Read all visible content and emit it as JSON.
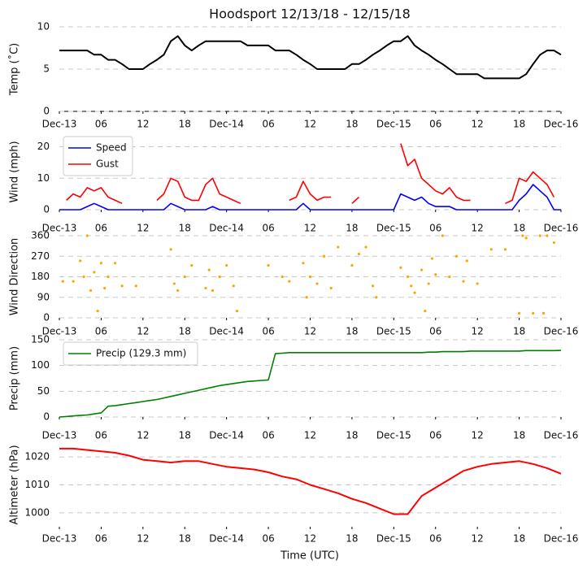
{
  "chart_data": [
    {
      "type": "line",
      "title": "Hoodsport 12/13/18 - 12/15/18",
      "ylabel": "Temp ($^\\circ$C)",
      "xlim": [
        0,
        72
      ],
      "ylim": [
        0,
        10
      ],
      "yticks": [
        0,
        5,
        10
      ],
      "grid": true,
      "xticks": [
        {
          "value": 0,
          "label": "Dec-13"
        },
        {
          "value": 6,
          "label": "06"
        },
        {
          "value": 12,
          "label": "12"
        },
        {
          "value": 18,
          "label": "18"
        },
        {
          "value": 24,
          "label": "Dec-14"
        },
        {
          "value": 30,
          "label": "06"
        },
        {
          "value": 36,
          "label": "12"
        },
        {
          "value": 42,
          "label": "18"
        },
        {
          "value": 48,
          "label": "Dec-15"
        },
        {
          "value": 54,
          "label": "06"
        },
        {
          "value": 60,
          "label": "12"
        },
        {
          "value": 66,
          "label": "18"
        },
        {
          "value": 72,
          "label": "Dec-16"
        }
      ],
      "x": [
        0,
        1,
        2,
        3,
        4,
        5,
        6,
        7,
        8,
        9,
        10,
        11,
        12,
        13,
        14,
        15,
        16,
        17,
        18,
        19,
        20,
        21,
        22,
        23,
        24,
        25,
        26,
        27,
        28,
        29,
        30,
        31,
        32,
        33,
        34,
        35,
        36,
        37,
        38,
        39,
        40,
        41,
        42,
        43,
        44,
        45,
        46,
        47,
        48,
        49,
        50,
        51,
        52,
        53,
        54,
        55,
        56,
        57,
        58,
        59,
        60,
        61,
        62,
        63,
        64,
        65,
        66,
        67,
        68,
        69,
        70,
        71,
        72
      ],
      "series": [
        {
          "color": "#000000",
          "values": [
            7.2,
            7.2,
            7.2,
            7.2,
            7.2,
            6.7,
            6.7,
            6.1,
            6.1,
            5.6,
            5.0,
            5.0,
            5.0,
            5.6,
            6.1,
            6.7,
            8.3,
            8.9,
            7.8,
            7.2,
            7.8,
            8.3,
            8.3,
            8.3,
            8.3,
            8.3,
            8.3,
            7.8,
            7.8,
            7.8,
            7.8,
            7.2,
            7.2,
            7.2,
            6.7,
            6.1,
            5.6,
            5.0,
            5.0,
            5.0,
            5.0,
            5.0,
            5.6,
            5.6,
            6.1,
            6.7,
            7.2,
            7.8,
            8.3,
            8.3,
            8.9,
            7.8,
            7.2,
            6.7,
            6.1,
            5.6,
            5.0,
            4.4,
            4.4,
            4.4,
            4.4,
            3.9,
            3.9,
            3.9,
            3.9,
            3.9,
            3.9,
            4.4,
            5.6,
            6.7,
            7.2,
            7.2,
            6.7
          ]
        }
      ]
    },
    {
      "type": "line",
      "ylabel": "Wind (mph)",
      "legend": "upper left",
      "xlim": [
        0,
        72
      ],
      "ylim": [
        0,
        24
      ],
      "yticks": [
        0,
        10,
        20
      ],
      "grid": true,
      "xticks": [
        {
          "value": 0,
          "label": "Dec-13"
        },
        {
          "value": 6,
          "label": "06"
        },
        {
          "value": 12,
          "label": "12"
        },
        {
          "value": 18,
          "label": "18"
        },
        {
          "value": 24,
          "label": "Dec-14"
        },
        {
          "value": 30,
          "label": "06"
        },
        {
          "value": 36,
          "label": "12"
        },
        {
          "value": 42,
          "label": "18"
        },
        {
          "value": 48,
          "label": "Dec-15"
        },
        {
          "value": 54,
          "label": "06"
        },
        {
          "value": 60,
          "label": "12"
        },
        {
          "value": 66,
          "label": "18"
        },
        {
          "value": 72,
          "label": "Dec-16"
        }
      ],
      "x": [
        0,
        1,
        2,
        3,
        4,
        5,
        6,
        7,
        8,
        9,
        10,
        11,
        12,
        13,
        14,
        15,
        16,
        17,
        18,
        19,
        20,
        21,
        22,
        23,
        24,
        25,
        26,
        27,
        28,
        29,
        30,
        31,
        32,
        33,
        34,
        35,
        36,
        37,
        38,
        39,
        40,
        41,
        42,
        43,
        44,
        45,
        46,
        47,
        48,
        49,
        50,
        51,
        52,
        53,
        54,
        55,
        56,
        57,
        58,
        59,
        60,
        61,
        62,
        63,
        64,
        65,
        66,
        67,
        68,
        69,
        70,
        71,
        72
      ],
      "series": [
        {
          "name": "Speed",
          "color": "#0000ff",
          "values": [
            0,
            0,
            0,
            0,
            1,
            2,
            1,
            0,
            0,
            0,
            0,
            0,
            0,
            0,
            0,
            0,
            2,
            1,
            0,
            0,
            0,
            0,
            1,
            0,
            0,
            0,
            0,
            0,
            0,
            0,
            0,
            0,
            0,
            0,
            0,
            2,
            0,
            0,
            0,
            0,
            0,
            0,
            0,
            0,
            0,
            0,
            0,
            0,
            0,
            5,
            4,
            3,
            4,
            2,
            1,
            1,
            1,
            0,
            0,
            0,
            0,
            0,
            0,
            0,
            0,
            0,
            3,
            5,
            8,
            6,
            4,
            0,
            0
          ]
        },
        {
          "name": "Gust",
          "color": "#ff0000",
          "values": [
            null,
            3,
            5,
            4,
            7,
            6,
            7,
            4,
            3,
            2,
            null,
            null,
            null,
            null,
            3,
            5,
            10,
            9,
            4,
            3,
            3,
            8,
            10,
            5,
            4,
            3,
            2,
            null,
            null,
            2,
            null,
            null,
            null,
            3,
            4,
            9,
            5,
            3,
            4,
            4,
            null,
            null,
            2,
            4,
            null,
            3,
            null,
            3,
            null,
            21,
            14,
            16,
            10,
            8,
            6,
            5,
            7,
            4,
            3,
            3,
            null,
            2,
            null,
            null,
            2,
            3,
            10,
            9,
            12,
            10,
            8,
            4,
            null
          ]
        }
      ]
    },
    {
      "type": "scatter",
      "ylabel": "Wind Direction",
      "xlim": [
        0,
        72
      ],
      "ylim": [
        0,
        360
      ],
      "yticks": [
        0,
        90,
        180,
        270,
        360
      ],
      "grid": true,
      "xticks": [
        {
          "value": 0,
          "label": "Dec-13"
        },
        {
          "value": 6,
          "label": "06"
        },
        {
          "value": 12,
          "label": "12"
        },
        {
          "value": 18,
          "label": "18"
        },
        {
          "value": 24,
          "label": "Dec-14"
        },
        {
          "value": 30,
          "label": "06"
        },
        {
          "value": 36,
          "label": "12"
        },
        {
          "value": 42,
          "label": "18"
        },
        {
          "value": 48,
          "label": "Dec-15"
        },
        {
          "value": 54,
          "label": "06"
        },
        {
          "value": 60,
          "label": "12"
        },
        {
          "value": 66,
          "label": "18"
        },
        {
          "value": 72,
          "label": "Dec-16"
        }
      ],
      "x": [
        0.5,
        2,
        3,
        3.5,
        4,
        4.5,
        5,
        5.5,
        6,
        6.5,
        7,
        8,
        9,
        11,
        16,
        16.5,
        17,
        18,
        19,
        21,
        21.5,
        22,
        23,
        24,
        25,
        25.5,
        30,
        32,
        33,
        35,
        35.5,
        36,
        37,
        38,
        39,
        40,
        42,
        43,
        44,
        45,
        45.5,
        49,
        50,
        50.5,
        51,
        52,
        52.5,
        53,
        53.5,
        54,
        55,
        56,
        57,
        58,
        58.5,
        60,
        62,
        64,
        66,
        66.5,
        67,
        68,
        69,
        69.5,
        70,
        71
      ],
      "series": [
        {
          "color": "#ffa500",
          "values": [
            160,
            160,
            250,
            180,
            360,
            120,
            200,
            30,
            240,
            130,
            180,
            240,
            140,
            140,
            300,
            150,
            120,
            180,
            230,
            130,
            210,
            120,
            180,
            230,
            140,
            30,
            230,
            180,
            160,
            240,
            90,
            180,
            150,
            270,
            130,
            310,
            230,
            280,
            310,
            140,
            90,
            220,
            180,
            140,
            110,
            210,
            30,
            150,
            260,
            190,
            360,
            180,
            270,
            160,
            250,
            150,
            300,
            300,
            20,
            360,
            350,
            20,
            360,
            20,
            360,
            330
          ]
        }
      ]
    },
    {
      "type": "line",
      "ylabel": "Precip (mm)",
      "legend": "upper left",
      "xlim": [
        0,
        72
      ],
      "ylim": [
        0,
        150
      ],
      "yticks": [
        0,
        50,
        100,
        150
      ],
      "grid": true,
      "xticks": [
        {
          "value": 0,
          "label": "Dec-13"
        },
        {
          "value": 6,
          "label": "06"
        },
        {
          "value": 12,
          "label": "12"
        },
        {
          "value": 18,
          "label": "18"
        },
        {
          "value": 24,
          "label": "Dec-14"
        },
        {
          "value": 30,
          "label": "06"
        },
        {
          "value": 36,
          "label": "12"
        },
        {
          "value": 42,
          "label": "18"
        },
        {
          "value": 48,
          "label": "Dec-15"
        },
        {
          "value": 54,
          "label": "06"
        },
        {
          "value": 60,
          "label": "12"
        },
        {
          "value": 66,
          "label": "18"
        },
        {
          "value": 72,
          "label": "Dec-16"
        }
      ],
      "x": [
        0,
        1,
        2,
        3,
        4,
        5,
        6,
        7,
        8,
        9,
        10,
        11,
        12,
        13,
        14,
        15,
        16,
        17,
        18,
        19,
        20,
        21,
        22,
        23,
        24,
        25,
        26,
        27,
        28,
        29,
        30,
        31,
        32,
        33,
        34,
        35,
        36,
        37,
        38,
        39,
        40,
        41,
        42,
        43,
        44,
        45,
        46,
        47,
        48,
        49,
        50,
        51,
        52,
        53,
        54,
        55,
        56,
        57,
        58,
        59,
        60,
        61,
        62,
        63,
        64,
        65,
        66,
        67,
        68,
        69,
        70,
        71,
        72
      ],
      "series": [
        {
          "name": "Precip (129.3 mm)",
          "color": "#008000",
          "values": [
            0,
            1,
            2,
            3,
            4,
            6,
            8,
            21,
            22,
            24,
            26,
            28,
            30,
            32,
            34,
            37,
            40,
            43,
            46,
            49,
            52,
            55,
            58,
            61,
            63,
            65,
            67,
            69,
            70,
            71,
            72,
            123,
            124,
            125,
            125,
            125,
            125,
            125,
            125,
            125,
            125,
            125,
            125,
            125,
            125,
            125,
            125,
            125,
            125,
            125,
            125,
            125,
            125,
            126,
            126,
            127,
            127,
            127,
            127,
            128,
            128,
            128,
            128,
            128,
            128,
            128,
            128,
            129,
            129,
            129,
            129,
            129,
            129.3
          ]
        }
      ]
    },
    {
      "type": "line",
      "ylabel": "Altimeter (hPa)",
      "xlabel": "Time (UTC)",
      "xlim": [
        0,
        72
      ],
      "ylim": [
        995,
        1025
      ],
      "yticks": [
        1000,
        1010,
        1020
      ],
      "grid": true,
      "xticks": [
        {
          "value": 0,
          "label": "Dec-13"
        },
        {
          "value": 6,
          "label": "06"
        },
        {
          "value": 12,
          "label": "12"
        },
        {
          "value": 18,
          "label": "18"
        },
        {
          "value": 24,
          "label": "Dec-14"
        },
        {
          "value": 30,
          "label": "06"
        },
        {
          "value": 36,
          "label": "12"
        },
        {
          "value": 42,
          "label": "18"
        },
        {
          "value": 48,
          "label": "Dec-15"
        },
        {
          "value": 54,
          "label": "06"
        },
        {
          "value": 60,
          "label": "12"
        },
        {
          "value": 66,
          "label": "18"
        },
        {
          "value": 72,
          "label": "Dec-16"
        }
      ],
      "x": [
        0,
        2,
        4,
        6,
        8,
        10,
        12,
        14,
        16,
        18,
        20,
        22,
        24,
        26,
        28,
        30,
        32,
        34,
        36,
        38,
        40,
        42,
        44,
        46,
        48,
        50,
        52,
        54,
        56,
        58,
        60,
        62,
        64,
        66,
        68,
        70,
        72
      ],
      "series": [
        {
          "color": "#ff0000",
          "values": [
            1023,
            1023,
            1022.5,
            1022,
            1021.5,
            1020.5,
            1019,
            1018.5,
            1018,
            1018.5,
            1018.5,
            1017.5,
            1016.5,
            1016,
            1015.5,
            1014.5,
            1013,
            1012,
            1010,
            1008.5,
            1007,
            1005,
            1003.5,
            1001.5,
            999.5,
            999.5,
            1006,
            1009,
            1012,
            1015,
            1016.5,
            1017.5,
            1018,
            1018.5,
            1017.5,
            1016,
            1014
          ]
        }
      ]
    }
  ]
}
